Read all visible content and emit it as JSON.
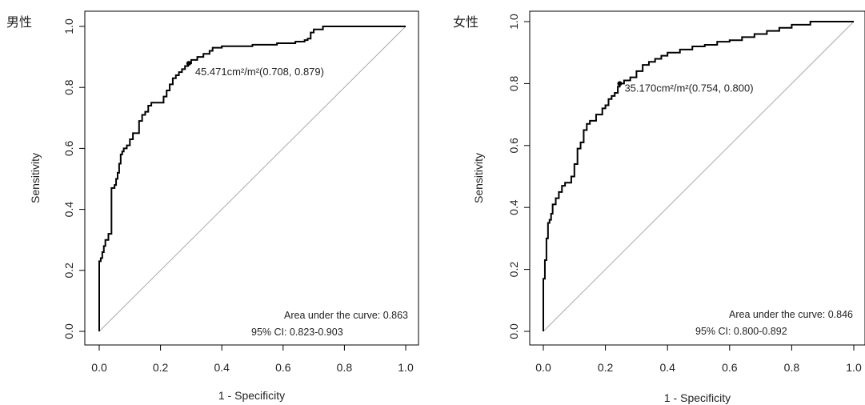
{
  "chart_data": [
    {
      "type": "line",
      "panel_title": "男性",
      "xlabel": "1 - Specificity",
      "ylabel": "Sensitivity",
      "xlim": [
        0,
        1
      ],
      "ylim": [
        0,
        1
      ],
      "xticks": [
        "0.0",
        "0.2",
        "0.4",
        "0.6",
        "0.8",
        "1.0"
      ],
      "yticks": [
        "0.0",
        "0.2",
        "0.4",
        "0.6",
        "0.8",
        "1.0"
      ],
      "grid": false,
      "reference_line": "diagonal",
      "annotation": "45.471cm²/m²(0.708, 0.879)",
      "cutoff_point": {
        "x": 0.292,
        "y": 0.879
      },
      "auc_text": "Area under the curve: 0.863",
      "ci_text": "95% CI: 0.823-0.903",
      "x": [
        0.0,
        0.0,
        0.005,
        0.01,
        0.015,
        0.02,
        0.03,
        0.04,
        0.05,
        0.055,
        0.06,
        0.065,
        0.07,
        0.075,
        0.08,
        0.09,
        0.1,
        0.11,
        0.13,
        0.14,
        0.15,
        0.16,
        0.17,
        0.19,
        0.21,
        0.22,
        0.23,
        0.24,
        0.25,
        0.26,
        0.27,
        0.28,
        0.29,
        0.3,
        0.32,
        0.34,
        0.36,
        0.37,
        0.38,
        0.4,
        0.5,
        0.58,
        0.64,
        0.67,
        0.68,
        0.69,
        0.7,
        0.72,
        0.73,
        0.8,
        0.9,
        1.0
      ],
      "y": [
        0.0,
        0.23,
        0.24,
        0.26,
        0.28,
        0.3,
        0.32,
        0.47,
        0.48,
        0.5,
        0.52,
        0.55,
        0.58,
        0.59,
        0.6,
        0.61,
        0.63,
        0.65,
        0.69,
        0.71,
        0.72,
        0.74,
        0.75,
        0.75,
        0.77,
        0.79,
        0.81,
        0.83,
        0.84,
        0.85,
        0.86,
        0.87,
        0.879,
        0.89,
        0.9,
        0.91,
        0.92,
        0.93,
        0.93,
        0.935,
        0.94,
        0.945,
        0.95,
        0.955,
        0.96,
        0.98,
        0.99,
        0.99,
        1.0,
        1.0,
        1.0,
        1.0
      ]
    },
    {
      "type": "line",
      "panel_title": "女性",
      "xlabel": "1 - Specificity",
      "ylabel": "Sensitivity",
      "xlim": [
        0,
        1
      ],
      "ylim": [
        0,
        1
      ],
      "xticks": [
        "0.0",
        "0.2",
        "0.4",
        "0.6",
        "0.8",
        "1.0"
      ],
      "yticks": [
        "0.0",
        "0.2",
        "0.4",
        "0.6",
        "0.8",
        "1.0"
      ],
      "grid": false,
      "reference_line": "diagonal",
      "annotation": "35.170cm²/m²(0.754, 0.800)",
      "cutoff_point": {
        "x": 0.246,
        "y": 0.8
      },
      "auc_text": "Area under the curve: 0.846",
      "ci_text": "95% CI: 0.800-0.892",
      "x": [
        0.0,
        0.0,
        0.005,
        0.01,
        0.015,
        0.02,
        0.025,
        0.03,
        0.04,
        0.05,
        0.06,
        0.07,
        0.08,
        0.09,
        0.1,
        0.11,
        0.12,
        0.13,
        0.14,
        0.15,
        0.17,
        0.19,
        0.2,
        0.21,
        0.22,
        0.23,
        0.24,
        0.246,
        0.26,
        0.28,
        0.3,
        0.32,
        0.34,
        0.36,
        0.38,
        0.4,
        0.44,
        0.48,
        0.52,
        0.56,
        0.6,
        0.64,
        0.68,
        0.72,
        0.76,
        0.8,
        0.86,
        1.0
      ],
      "y": [
        0.0,
        0.17,
        0.23,
        0.3,
        0.35,
        0.36,
        0.38,
        0.41,
        0.43,
        0.45,
        0.47,
        0.48,
        0.48,
        0.5,
        0.54,
        0.59,
        0.61,
        0.65,
        0.67,
        0.68,
        0.7,
        0.72,
        0.73,
        0.75,
        0.76,
        0.77,
        0.79,
        0.8,
        0.81,
        0.82,
        0.84,
        0.86,
        0.87,
        0.88,
        0.89,
        0.9,
        0.91,
        0.92,
        0.925,
        0.935,
        0.94,
        0.95,
        0.96,
        0.97,
        0.98,
        0.99,
        1.0,
        1.0
      ]
    }
  ]
}
